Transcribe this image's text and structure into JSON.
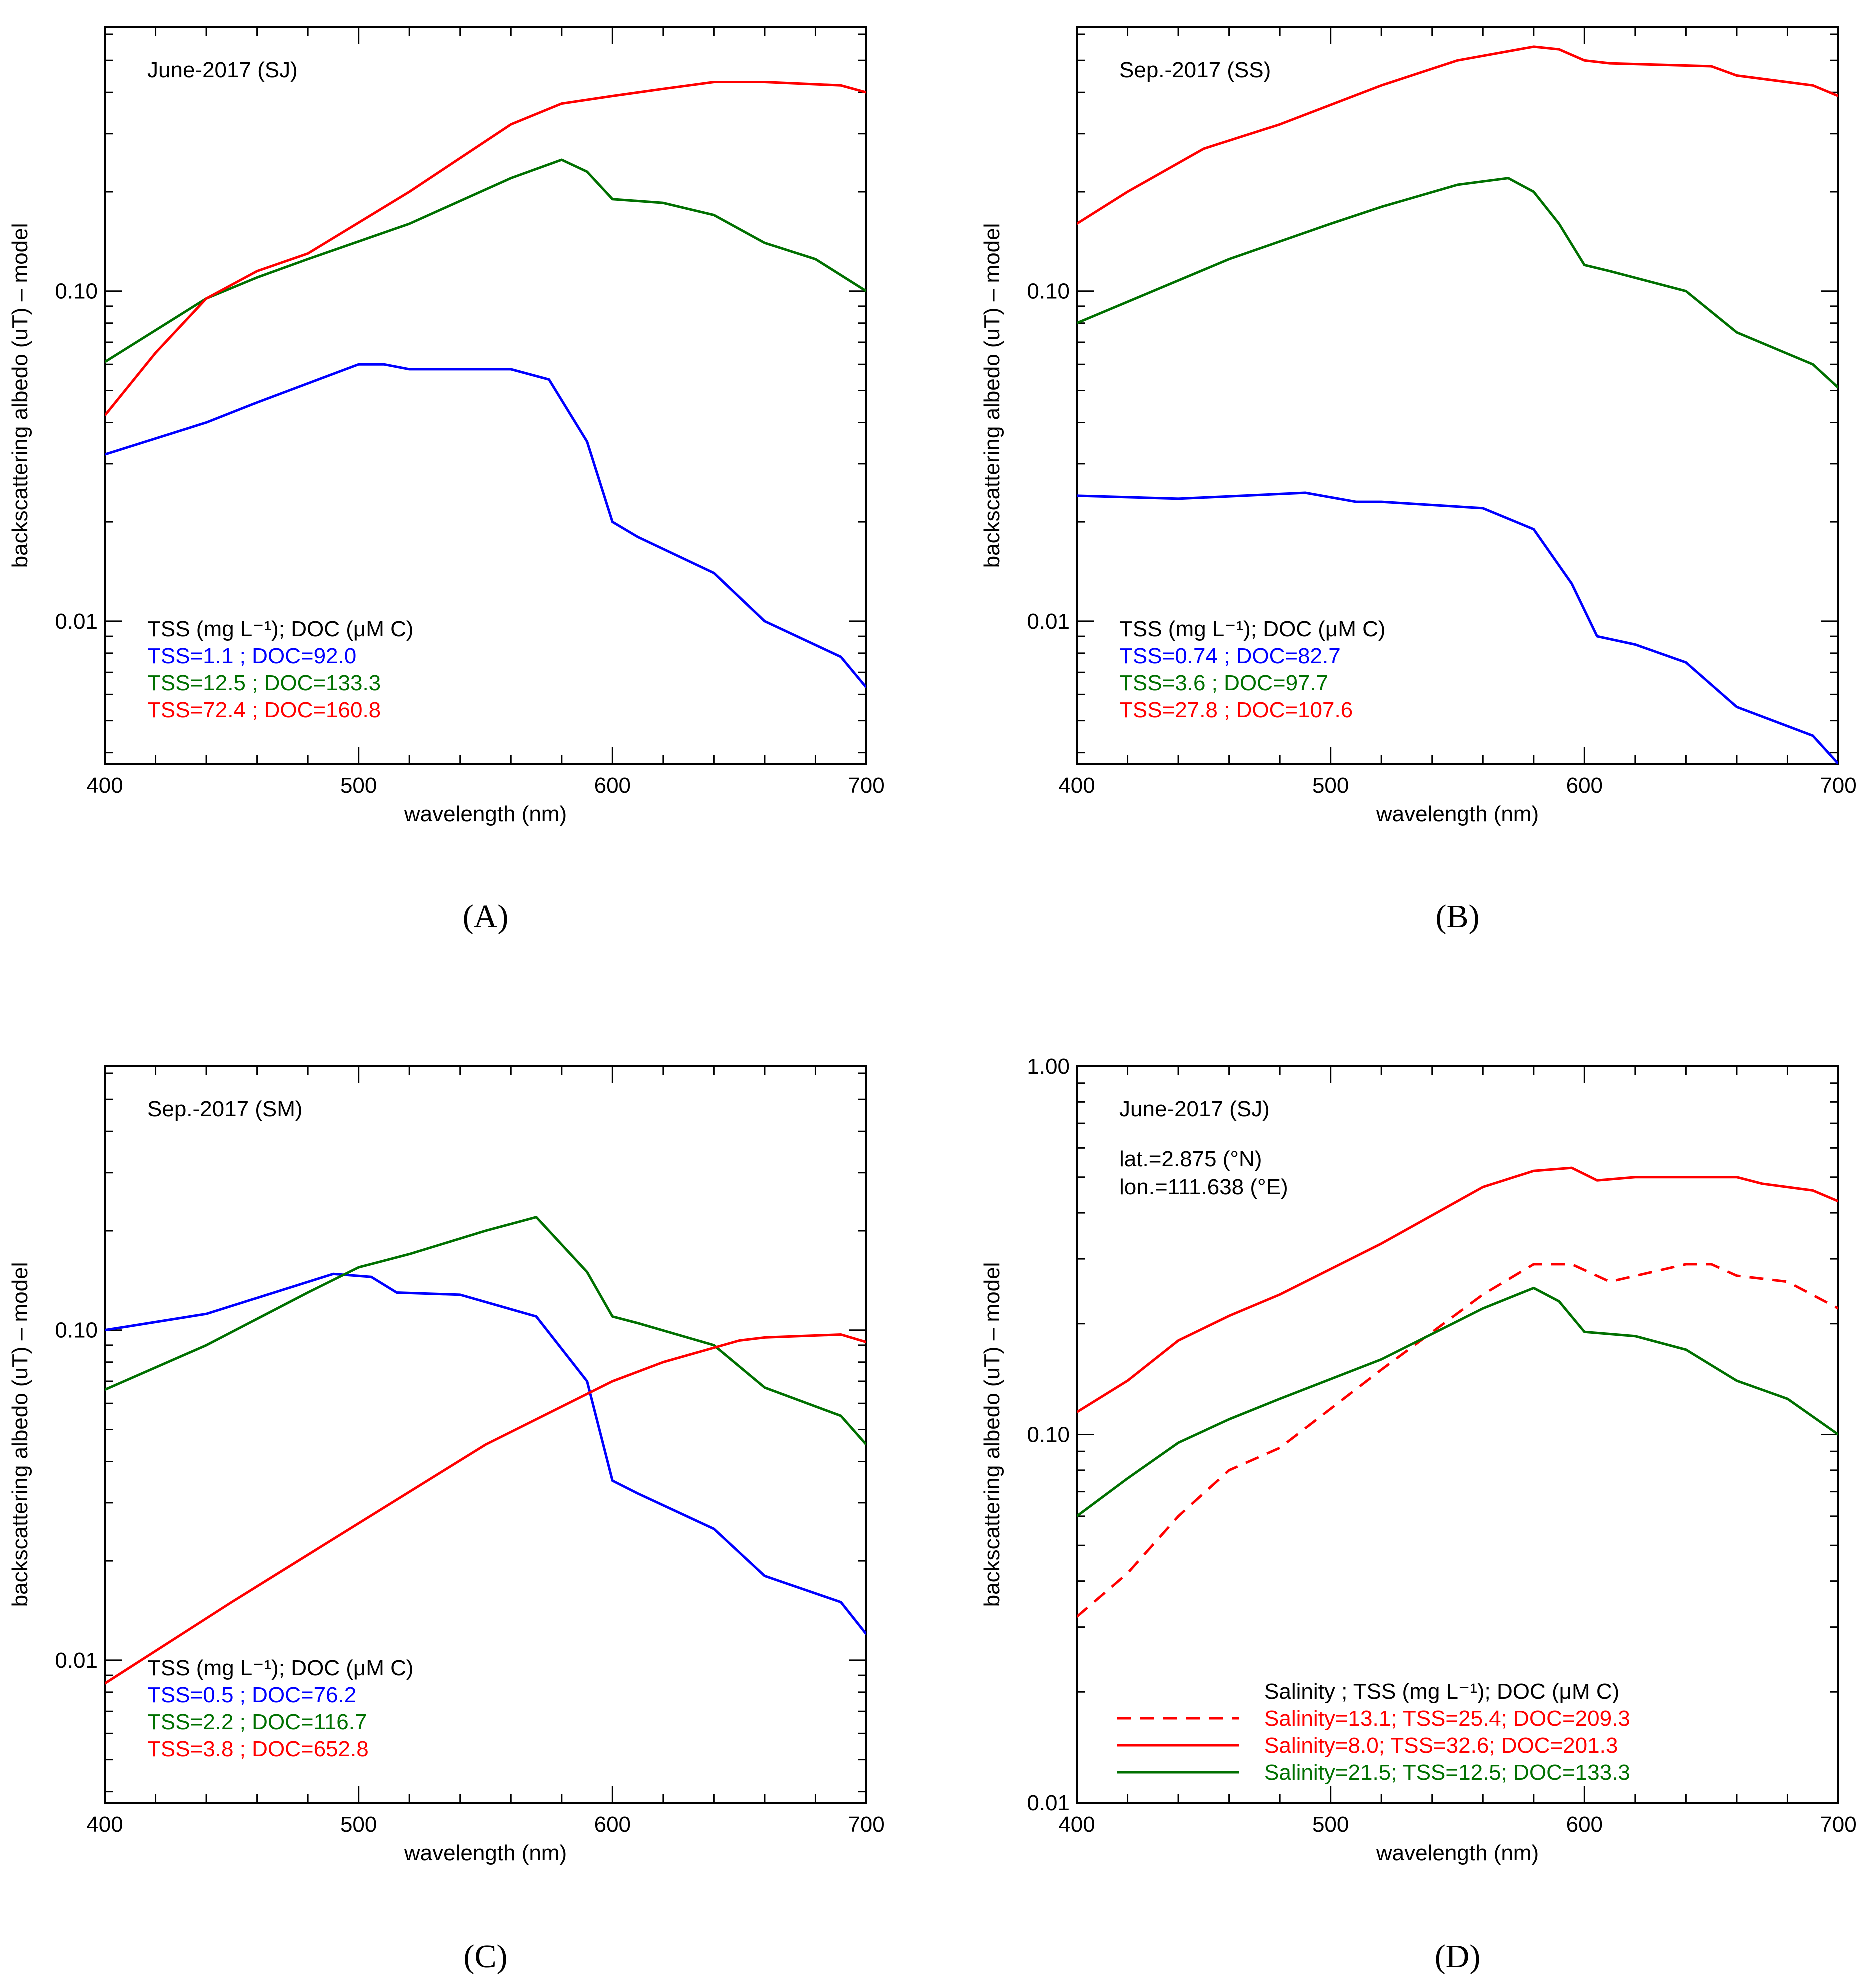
{
  "figure": {
    "panel_labels": [
      "(A)",
      "(B)",
      "(C)",
      "(D)"
    ]
  },
  "chart_data": [
    {
      "type": "line",
      "panel": "A",
      "title": "June-2017 (SJ)",
      "xlabel": "wavelength (nm)",
      "ylabel": "backscattering albedo (uT) – model",
      "xlim": [
        400,
        700
      ],
      "ylim": [
        0.0037,
        0.63
      ],
      "yscale": "log",
      "xticks": [
        "400",
        "500",
        "600",
        "700"
      ],
      "yticks": [
        {
          "value": 0.01,
          "label": "0.01"
        },
        {
          "value": 0.1,
          "label": "0.10"
        }
      ],
      "legend_header": "TSS (mg L⁻¹); DOC (μM C)",
      "series": [
        {
          "name": "TSS=1.1   ; DOC=92.0",
          "color": "#0000ff",
          "dash": "solid",
          "x": [
            400,
            440,
            460,
            500,
            510,
            520,
            560,
            575,
            590,
            600,
            610,
            640,
            660,
            690,
            700
          ],
          "y": [
            0.032,
            0.04,
            0.046,
            0.06,
            0.06,
            0.058,
            0.058,
            0.054,
            0.035,
            0.02,
            0.018,
            0.014,
            0.01,
            0.0078,
            0.0063
          ]
        },
        {
          "name": "TSS=12.5 ; DOC=133.3",
          "color": "#007000",
          "dash": "solid",
          "x": [
            400,
            440,
            460,
            480,
            520,
            560,
            580,
            590,
            600,
            620,
            640,
            660,
            680,
            700
          ],
          "y": [
            0.061,
            0.095,
            0.11,
            0.125,
            0.16,
            0.22,
            0.25,
            0.23,
            0.19,
            0.185,
            0.17,
            0.14,
            0.125,
            0.1
          ]
        },
        {
          "name": "TSS=72.4 ; DOC=160.8",
          "color": "#ff0000",
          "dash": "solid",
          "x": [
            400,
            420,
            440,
            460,
            480,
            520,
            560,
            580,
            600,
            620,
            640,
            660,
            690,
            700
          ],
          "y": [
            0.042,
            0.065,
            0.095,
            0.115,
            0.13,
            0.2,
            0.32,
            0.37,
            0.39,
            0.41,
            0.43,
            0.43,
            0.42,
            0.4
          ]
        }
      ]
    },
    {
      "type": "line",
      "panel": "B",
      "title": "Sep.-2017 (SS)",
      "xlabel": "wavelength (nm)",
      "ylabel": "backscattering albedo (uT) – model",
      "xlim": [
        400,
        700
      ],
      "ylim": [
        0.0037,
        0.63
      ],
      "yscale": "log",
      "xticks": [
        "400",
        "500",
        "600",
        "700"
      ],
      "yticks": [
        {
          "value": 0.01,
          "label": "0.01"
        },
        {
          "value": 0.1,
          "label": "0.10"
        }
      ],
      "legend_header": "TSS (mg L⁻¹); DOC (μM C)",
      "series": [
        {
          "name": "TSS=0.74 ; DOC=82.7",
          "color": "#0000ff",
          "dash": "solid",
          "x": [
            400,
            440,
            490,
            510,
            520,
            560,
            580,
            595,
            605,
            620,
            640,
            660,
            690,
            700
          ],
          "y": [
            0.024,
            0.0235,
            0.0245,
            0.023,
            0.023,
            0.022,
            0.019,
            0.013,
            0.009,
            0.0085,
            0.0075,
            0.0055,
            0.0045,
            0.0037
          ]
        },
        {
          "name": "TSS=3.6   ; DOC=97.7",
          "color": "#007000",
          "dash": "solid",
          "x": [
            400,
            430,
            460,
            500,
            520,
            550,
            570,
            580,
            590,
            600,
            610,
            640,
            660,
            690,
            700
          ],
          "y": [
            0.08,
            0.1,
            0.125,
            0.16,
            0.18,
            0.21,
            0.22,
            0.2,
            0.16,
            0.12,
            0.115,
            0.1,
            0.075,
            0.06,
            0.051
          ]
        },
        {
          "name": "TSS=27.8 ; DOC=107.6",
          "color": "#ff0000",
          "dash": "solid",
          "x": [
            400,
            420,
            450,
            480,
            520,
            550,
            580,
            590,
            600,
            610,
            650,
            660,
            690,
            700
          ],
          "y": [
            0.16,
            0.2,
            0.27,
            0.32,
            0.42,
            0.5,
            0.55,
            0.54,
            0.5,
            0.49,
            0.48,
            0.45,
            0.42,
            0.39
          ]
        }
      ]
    },
    {
      "type": "line",
      "panel": "C",
      "title": "Sep.-2017 (SM)",
      "xlabel": "wavelength (nm)",
      "ylabel": "backscattering albedo (uT) – model",
      "xlim": [
        400,
        700
      ],
      "ylim": [
        0.0037,
        0.63
      ],
      "yscale": "log",
      "xticks": [
        "400",
        "500",
        "600",
        "700"
      ],
      "yticks": [
        {
          "value": 0.01,
          "label": "0.01"
        },
        {
          "value": 0.1,
          "label": "0.10"
        }
      ],
      "legend_header": "TSS (mg L⁻¹); DOC (μM C)",
      "series": [
        {
          "name": "TSS=0.5   ; DOC=76.2",
          "color": "#0000ff",
          "dash": "solid",
          "x": [
            400,
            440,
            490,
            505,
            515,
            540,
            570,
            590,
            600,
            610,
            640,
            660,
            690,
            700
          ],
          "y": [
            0.1,
            0.112,
            0.148,
            0.145,
            0.13,
            0.128,
            0.11,
            0.07,
            0.035,
            0.032,
            0.025,
            0.018,
            0.015,
            0.012
          ]
        },
        {
          "name": "TSS=2.2   ; DOC=116.7",
          "color": "#007000",
          "dash": "solid",
          "x": [
            400,
            440,
            480,
            500,
            520,
            550,
            570,
            590,
            600,
            610,
            640,
            660,
            690,
            700
          ],
          "y": [
            0.066,
            0.09,
            0.13,
            0.155,
            0.17,
            0.2,
            0.22,
            0.15,
            0.11,
            0.105,
            0.09,
            0.067,
            0.055,
            0.045
          ]
        },
        {
          "name": "TSS=3.8   ; DOC=652.8",
          "color": "#ff0000",
          "dash": "solid",
          "x": [
            400,
            450,
            500,
            550,
            600,
            620,
            650,
            660,
            690,
            700
          ],
          "y": [
            0.0085,
            0.015,
            0.026,
            0.045,
            0.07,
            0.08,
            0.093,
            0.095,
            0.097,
            0.092
          ]
        }
      ]
    },
    {
      "type": "line",
      "panel": "D",
      "title": "June-2017 (SJ)",
      "annotations": [
        "lat.=2.875 (°N)",
        "lon.=111.638 (°E)"
      ],
      "xlabel": "wavelength (nm)",
      "ylabel": "backscattering albedo (uT) – model",
      "xlim": [
        400,
        700
      ],
      "ylim": [
        0.01,
        1.0
      ],
      "yscale": "log",
      "xticks": [
        "400",
        "500",
        "600",
        "700"
      ],
      "yticks": [
        {
          "value": 0.01,
          "label": "0.01"
        },
        {
          "value": 0.1,
          "label": "0.10"
        },
        {
          "value": 1.0,
          "label": "1.00"
        }
      ],
      "legend_header": "Salinity ; TSS (mg L⁻¹); DOC (μM C)",
      "series": [
        {
          "name": "Salinity=13.1;  TSS=25.4;  DOC=209.3",
          "color": "#ff0000",
          "dash": "dashed",
          "x": [
            400,
            420,
            440,
            460,
            480,
            520,
            560,
            580,
            595,
            610,
            640,
            650,
            660,
            680,
            700
          ],
          "y": [
            0.032,
            0.042,
            0.06,
            0.08,
            0.092,
            0.15,
            0.24,
            0.29,
            0.29,
            0.26,
            0.29,
            0.29,
            0.27,
            0.26,
            0.22
          ]
        },
        {
          "name": "Salinity=8.0;    TSS=32.6;  DOC=201.3",
          "color": "#ff0000",
          "dash": "solid",
          "x": [
            400,
            420,
            440,
            460,
            480,
            520,
            560,
            580,
            595,
            605,
            620,
            660,
            670,
            690,
            700
          ],
          "y": [
            0.115,
            0.14,
            0.18,
            0.21,
            0.24,
            0.33,
            0.47,
            0.52,
            0.53,
            0.49,
            0.5,
            0.5,
            0.48,
            0.46,
            0.43
          ]
        },
        {
          "name": "Salinity=21.5;  TSS=12.5;  DOC=133.3",
          "color": "#007000",
          "dash": "solid",
          "x": [
            400,
            420,
            440,
            460,
            480,
            520,
            560,
            580,
            590,
            600,
            620,
            640,
            660,
            680,
            700
          ],
          "y": [
            0.06,
            0.076,
            0.095,
            0.11,
            0.125,
            0.16,
            0.22,
            0.25,
            0.23,
            0.19,
            0.185,
            0.17,
            0.14,
            0.125,
            0.1
          ]
        }
      ]
    }
  ]
}
